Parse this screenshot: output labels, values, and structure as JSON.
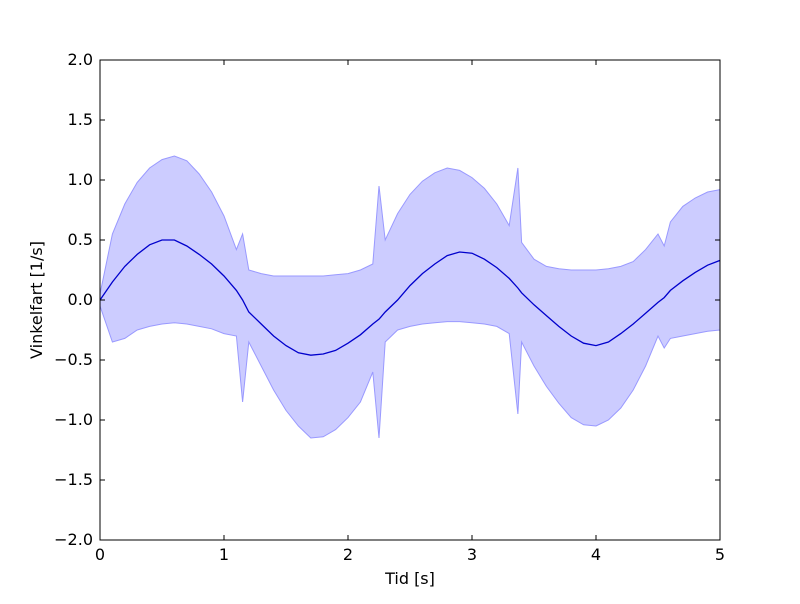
{
  "chart_data": {
    "type": "line",
    "title": "",
    "xlabel": "Tid [s]",
    "ylabel": "Vinkelfart [1/s]",
    "xlim": [
      0,
      5
    ],
    "ylim": [
      -2.0,
      2.0
    ],
    "grid": false,
    "colors": {
      "line": "#0000cc",
      "band_fill": "#ccccff",
      "band_edge": "#9999ff",
      "axes": "#000000",
      "background": "#ffffff"
    },
    "x_ticks": [
      {
        "value": 0,
        "label": "0"
      },
      {
        "value": 1,
        "label": "1"
      },
      {
        "value": 2,
        "label": "2"
      },
      {
        "value": 3,
        "label": "3"
      },
      {
        "value": 4,
        "label": "4"
      },
      {
        "value": 5,
        "label": "5"
      }
    ],
    "y_ticks": [
      {
        "value": 2.0,
        "label": "2.0"
      },
      {
        "value": 1.5,
        "label": "1.5"
      },
      {
        "value": 1.0,
        "label": "1.0"
      },
      {
        "value": 0.5,
        "label": "0.5"
      },
      {
        "value": 0.0,
        "label": "0.0"
      },
      {
        "value": -0.5,
        "label": "−0.5"
      },
      {
        "value": -1.0,
        "label": "−1.0"
      },
      {
        "value": -1.5,
        "label": "−1.5"
      },
      {
        "value": -2.0,
        "label": "−2.0"
      }
    ],
    "x": [
      0,
      0.1,
      0.2,
      0.3,
      0.4,
      0.5,
      0.6,
      0.7,
      0.8,
      0.9,
      1.0,
      1.1,
      1.15,
      1.2,
      1.3,
      1.4,
      1.5,
      1.6,
      1.7,
      1.8,
      1.9,
      2.0,
      2.1,
      2.2,
      2.25,
      2.3,
      2.4,
      2.5,
      2.6,
      2.7,
      2.8,
      2.9,
      3.0,
      3.1,
      3.2,
      3.3,
      3.37,
      3.4,
      3.5,
      3.6,
      3.7,
      3.8,
      3.9,
      4.0,
      4.1,
      4.2,
      4.3,
      4.4,
      4.5,
      4.55,
      4.6,
      4.7,
      4.8,
      4.9,
      5.0
    ],
    "series": [
      {
        "values": [
          0.0,
          0.15,
          0.28,
          0.38,
          0.46,
          0.5,
          0.5,
          0.45,
          0.38,
          0.3,
          0.2,
          0.08,
          0.0,
          -0.1,
          -0.2,
          -0.3,
          -0.38,
          -0.44,
          -0.46,
          -0.45,
          -0.42,
          -0.36,
          -0.29,
          -0.2,
          -0.16,
          -0.1,
          0.0,
          0.12,
          0.22,
          0.3,
          0.37,
          0.4,
          0.39,
          0.34,
          0.27,
          0.18,
          0.1,
          0.06,
          -0.04,
          -0.13,
          -0.22,
          -0.3,
          -0.36,
          -0.38,
          -0.35,
          -0.28,
          -0.2,
          -0.11,
          -0.02,
          0.02,
          0.08,
          0.16,
          0.23,
          0.29,
          0.33
        ]
      }
    ],
    "band": {
      "upper": [
        0.05,
        0.55,
        0.8,
        0.98,
        1.1,
        1.17,
        1.2,
        1.16,
        1.05,
        0.9,
        0.7,
        0.42,
        0.55,
        0.25,
        0.22,
        0.2,
        0.2,
        0.2,
        0.2,
        0.2,
        0.21,
        0.22,
        0.25,
        0.3,
        0.95,
        0.5,
        0.72,
        0.88,
        0.99,
        1.06,
        1.1,
        1.08,
        1.02,
        0.93,
        0.8,
        0.62,
        1.1,
        0.48,
        0.34,
        0.28,
        0.26,
        0.25,
        0.25,
        0.25,
        0.26,
        0.28,
        0.32,
        0.42,
        0.55,
        0.45,
        0.65,
        0.78,
        0.85,
        0.9,
        0.92
      ],
      "lower": [
        -0.05,
        -0.35,
        -0.32,
        -0.25,
        -0.22,
        -0.2,
        -0.19,
        -0.2,
        -0.22,
        -0.24,
        -0.28,
        -0.3,
        -0.85,
        -0.35,
        -0.55,
        -0.75,
        -0.92,
        -1.05,
        -1.15,
        -1.14,
        -1.08,
        -0.98,
        -0.85,
        -0.6,
        -1.15,
        -0.35,
        -0.25,
        -0.22,
        -0.2,
        -0.19,
        -0.18,
        -0.18,
        -0.19,
        -0.2,
        -0.22,
        -0.28,
        -0.95,
        -0.35,
        -0.55,
        -0.72,
        -0.86,
        -0.98,
        -1.04,
        -1.05,
        -1.0,
        -0.9,
        -0.75,
        -0.55,
        -0.3,
        -0.4,
        -0.32,
        -0.3,
        -0.28,
        -0.26,
        -0.25
      ]
    }
  }
}
